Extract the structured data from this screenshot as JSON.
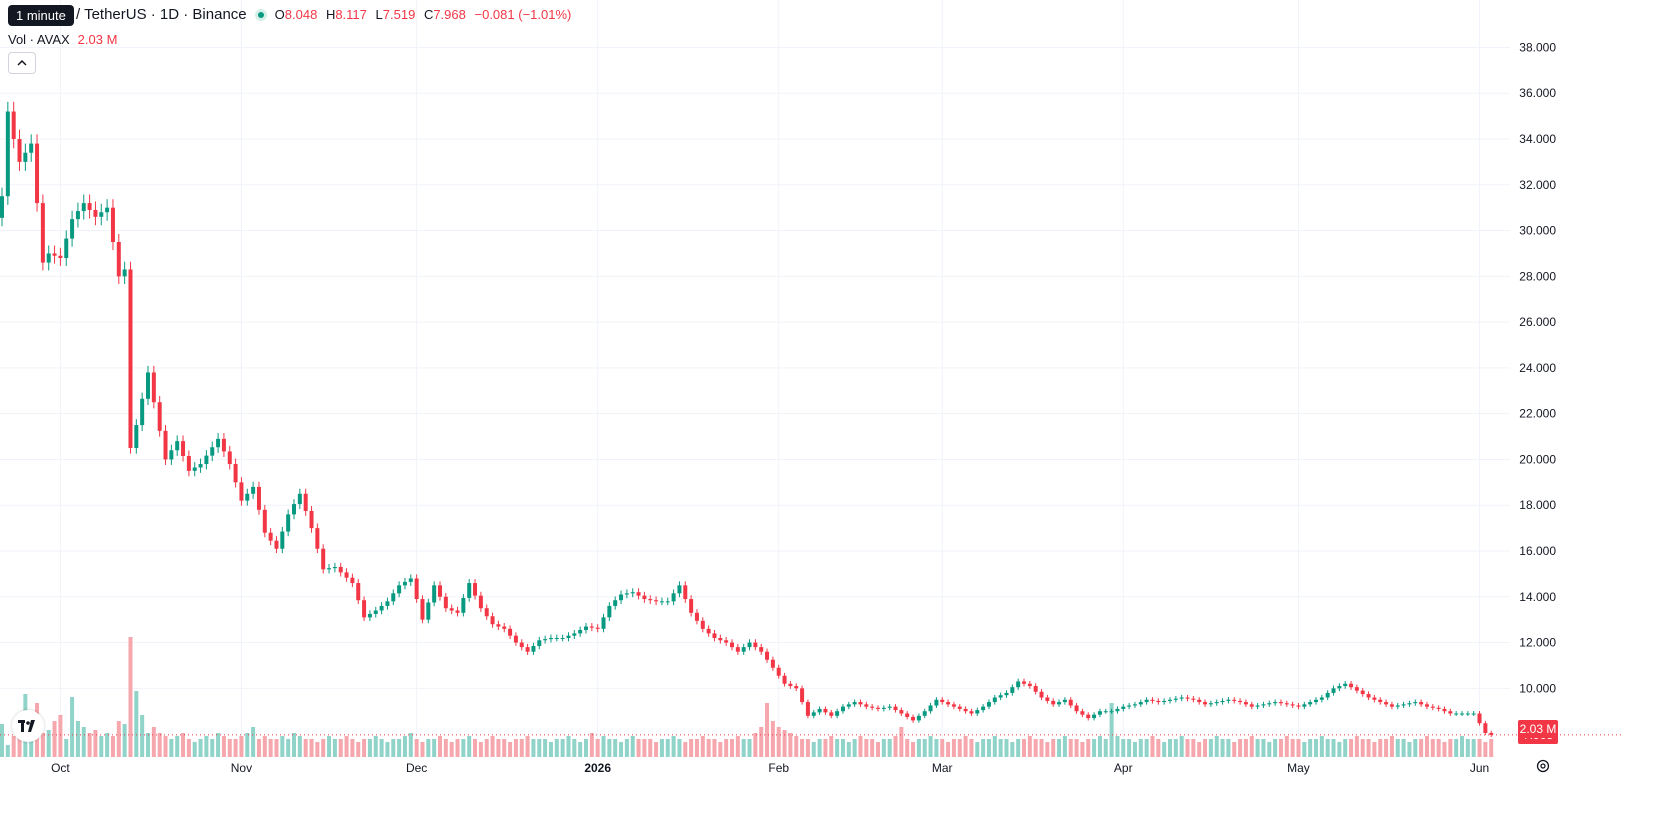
{
  "header": {
    "tooltip": "1 minute",
    "symbol_text": "/ TetherUS · 1D · Binance",
    "ohlc": [
      {
        "k": "O",
        "v": "8.048"
      },
      {
        "k": "H",
        "v": "8.117"
      },
      {
        "k": "L",
        "v": "7.519"
      },
      {
        "k": "C",
        "v": "7.968"
      }
    ],
    "change": "−0.081 (−1.01%)",
    "vol_label": "Vol · AVAX",
    "vol_value": "2.03 M"
  },
  "price_badge": "7.968",
  "volume_badge": "2.03 M",
  "colors": {
    "up": "#089981",
    "down": "#f23645",
    "vol_up": "#8fd3c9",
    "vol_down": "#f6a7ad"
  },
  "icons": [
    "collapse-chevron-up-icon",
    "tradingview-logo-icon",
    "settings-gear-icon"
  ],
  "chart_data": {
    "type": "candlestick",
    "ylim": [
      7.0,
      38.5
    ],
    "yticks": [
      10,
      12,
      14,
      16,
      18,
      20,
      22,
      24,
      26,
      28,
      30,
      32,
      34,
      36,
      38
    ],
    "ytick_labels": [
      "10.000",
      "12.000",
      "14.000",
      "16.000",
      "18.000",
      "20.000",
      "22.000",
      "24.000",
      "26.000",
      "28.000",
      "30.000",
      "32.000",
      "34.000",
      "36.000",
      "38.000"
    ],
    "xtick_labels": [
      "Oct",
      "Nov",
      "Dec",
      "2026",
      "Feb",
      "Mar",
      "Apr",
      "May",
      "Jun"
    ],
    "xtick_day_index": [
      10,
      41,
      71,
      102,
      133,
      161,
      192,
      222,
      253
    ],
    "last_price": 7.968,
    "close_path": [
      [
        0,
        31.5
      ],
      [
        1,
        35.2
      ],
      [
        2,
        34.0
      ],
      [
        3,
        33.0
      ],
      [
        5,
        33.8
      ],
      [
        7,
        28.6
      ],
      [
        8,
        29.0
      ],
      [
        10,
        28.8
      ],
      [
        12,
        30.5
      ],
      [
        14,
        31.2
      ],
      [
        16,
        30.6
      ],
      [
        18,
        31.0
      ],
      [
        20,
        28.0
      ],
      [
        21,
        28.3
      ],
      [
        22,
        20.5
      ],
      [
        23,
        21.5
      ],
      [
        25,
        23.8
      ],
      [
        26,
        22.5
      ],
      [
        28,
        20.0
      ],
      [
        30,
        20.8
      ],
      [
        32,
        19.5
      ],
      [
        34,
        19.8
      ],
      [
        37,
        20.9
      ],
      [
        39,
        19.8
      ],
      [
        41,
        18.2
      ],
      [
        43,
        18.8
      ],
      [
        45,
        16.8
      ],
      [
        47,
        16.1
      ],
      [
        49,
        17.6
      ],
      [
        51,
        18.5
      ],
      [
        53,
        17.0
      ],
      [
        55,
        15.2
      ],
      [
        57,
        15.3
      ],
      [
        60,
        14.6
      ],
      [
        62,
        13.1
      ],
      [
        64,
        13.4
      ],
      [
        66,
        13.8
      ],
      [
        68,
        14.5
      ],
      [
        70,
        14.8
      ],
      [
        72,
        13.0
      ],
      [
        74,
        14.5
      ],
      [
        76,
        13.5
      ],
      [
        78,
        13.3
      ],
      [
        80,
        14.6
      ],
      [
        82,
        13.5
      ],
      [
        84,
        12.8
      ],
      [
        86,
        12.6
      ],
      [
        88,
        12.0
      ],
      [
        90,
        11.6
      ],
      [
        92,
        12.1
      ],
      [
        94,
        12.2
      ],
      [
        96,
        12.2
      ],
      [
        98,
        12.4
      ],
      [
        100,
        12.7
      ],
      [
        102,
        12.6
      ],
      [
        104,
        13.6
      ],
      [
        106,
        14.1
      ],
      [
        108,
        14.2
      ],
      [
        110,
        13.9
      ],
      [
        112,
        13.8
      ],
      [
        114,
        13.8
      ],
      [
        116,
        14.5
      ],
      [
        118,
        13.3
      ],
      [
        120,
        12.6
      ],
      [
        122,
        12.2
      ],
      [
        124,
        12.0
      ],
      [
        126,
        11.6
      ],
      [
        128,
        12.0
      ],
      [
        130,
        11.6
      ],
      [
        132,
        10.9
      ],
      [
        134,
        10.2
      ],
      [
        136,
        10.0
      ],
      [
        138,
        8.8
      ],
      [
        140,
        9.1
      ],
      [
        142,
        8.8
      ],
      [
        144,
        9.2
      ],
      [
        146,
        9.4
      ],
      [
        148,
        9.2
      ],
      [
        150,
        9.1
      ],
      [
        152,
        9.2
      ],
      [
        154,
        8.9
      ],
      [
        156,
        8.6
      ],
      [
        158,
        9.0
      ],
      [
        160,
        9.5
      ],
      [
        162,
        9.3
      ],
      [
        164,
        9.1
      ],
      [
        166,
        8.9
      ],
      [
        168,
        9.2
      ],
      [
        170,
        9.6
      ],
      [
        172,
        9.8
      ],
      [
        174,
        10.3
      ],
      [
        176,
        10.1
      ],
      [
        178,
        9.6
      ],
      [
        180,
        9.3
      ],
      [
        182,
        9.5
      ],
      [
        184,
        9.0
      ],
      [
        186,
        8.7
      ],
      [
        188,
        9.0
      ],
      [
        190,
        9.0
      ],
      [
        192,
        9.2
      ],
      [
        194,
        9.3
      ],
      [
        196,
        9.5
      ],
      [
        198,
        9.4
      ],
      [
        200,
        9.5
      ],
      [
        202,
        9.6
      ],
      [
        204,
        9.5
      ],
      [
        206,
        9.3
      ],
      [
        208,
        9.4
      ],
      [
        210,
        9.5
      ],
      [
        212,
        9.4
      ],
      [
        214,
        9.2
      ],
      [
        216,
        9.3
      ],
      [
        218,
        9.4
      ],
      [
        220,
        9.3
      ],
      [
        222,
        9.2
      ],
      [
        224,
        9.4
      ],
      [
        226,
        9.6
      ],
      [
        228,
        10.0
      ],
      [
        230,
        10.2
      ],
      [
        232,
        9.9
      ],
      [
        234,
        9.6
      ],
      [
        236,
        9.4
      ],
      [
        238,
        9.2
      ],
      [
        240,
        9.3
      ],
      [
        242,
        9.4
      ],
      [
        244,
        9.2
      ],
      [
        246,
        9.1
      ],
      [
        248,
        8.9
      ],
      [
        250,
        8.9
      ],
      [
        252,
        8.9
      ],
      [
        254,
        8.05
      ],
      [
        255,
        7.968
      ]
    ],
    "volume_ratio": [
      0.55,
      0.2,
      0.35,
      0.55,
      1.05,
      0.6,
      0.9,
      0.4,
      0.45,
      0.6,
      0.7,
      0.3,
      1.0,
      0.6,
      0.5,
      0.4,
      0.45,
      0.35,
      0.4,
      0.35,
      0.6,
      0.55,
      2.0,
      1.1,
      0.7,
      0.4,
      0.5,
      0.4,
      0.35,
      0.3,
      0.35,
      0.4,
      0.3,
      0.25,
      0.3,
      0.35,
      0.3,
      0.4,
      0.35,
      0.3,
      0.3,
      0.35,
      0.4,
      0.5,
      0.3,
      0.35,
      0.3,
      0.3,
      0.35,
      0.3,
      0.4,
      0.35,
      0.3,
      0.3,
      0.25,
      0.3,
      0.35,
      0.3,
      0.3,
      0.35,
      0.3,
      0.25,
      0.3,
      0.3,
      0.35,
      0.3,
      0.25,
      0.3,
      0.3,
      0.35,
      0.4,
      0.3,
      0.25,
      0.3,
      0.3,
      0.35,
      0.3,
      0.25,
      0.3,
      0.3,
      0.35,
      0.3,
      0.25,
      0.3,
      0.35,
      0.3,
      0.3,
      0.25,
      0.3,
      0.3,
      0.35,
      0.3,
      0.3,
      0.3,
      0.25,
      0.3,
      0.3,
      0.35,
      0.3,
      0.25,
      0.3,
      0.4,
      0.3,
      0.35,
      0.3,
      0.3,
      0.25,
      0.3,
      0.35,
      0.3,
      0.3,
      0.3,
      0.25,
      0.3,
      0.3,
      0.35,
      0.3,
      0.25,
      0.3,
      0.3,
      0.35,
      0.3,
      0.3,
      0.25,
      0.3,
      0.3,
      0.35,
      0.3,
      0.3,
      0.4,
      0.5,
      0.9,
      0.6,
      0.5,
      0.45,
      0.4,
      0.35,
      0.3,
      0.3,
      0.25,
      0.3,
      0.3,
      0.35,
      0.3,
      0.3,
      0.25,
      0.3,
      0.35,
      0.3,
      0.3,
      0.25,
      0.3,
      0.3,
      0.35,
      0.5,
      0.3,
      0.25,
      0.3,
      0.3,
      0.35,
      0.3,
      0.3,
      0.25,
      0.3,
      0.3,
      0.35,
      0.3,
      0.25,
      0.3,
      0.3,
      0.35,
      0.3,
      0.3,
      0.25,
      0.3,
      0.3,
      0.35,
      0.3,
      0.3,
      0.25,
      0.3,
      0.3,
      0.35,
      0.3,
      0.3,
      0.25,
      0.3,
      0.3,
      0.35,
      0.3,
      0.9,
      0.35,
      0.3,
      0.3,
      0.25,
      0.3,
      0.3,
      0.35,
      0.3,
      0.25,
      0.3,
      0.3,
      0.35,
      0.3,
      0.3,
      0.25,
      0.3,
      0.3,
      0.35,
      0.3,
      0.3,
      0.25,
      0.3,
      0.3,
      0.35,
      0.3,
      0.3,
      0.25,
      0.3,
      0.3,
      0.35,
      0.3,
      0.3,
      0.25,
      0.3,
      0.3,
      0.35,
      0.3,
      0.3,
      0.25,
      0.3,
      0.3,
      0.35,
      0.3,
      0.3,
      0.25,
      0.3,
      0.3,
      0.35,
      0.3,
      0.3,
      0.25,
      0.3,
      0.3,
      0.35,
      0.3,
      0.3,
      0.25,
      0.3,
      0.3,
      0.35,
      0.3,
      0.3,
      0.3,
      0.25,
      0.3,
      0.35,
      0.5
    ]
  }
}
